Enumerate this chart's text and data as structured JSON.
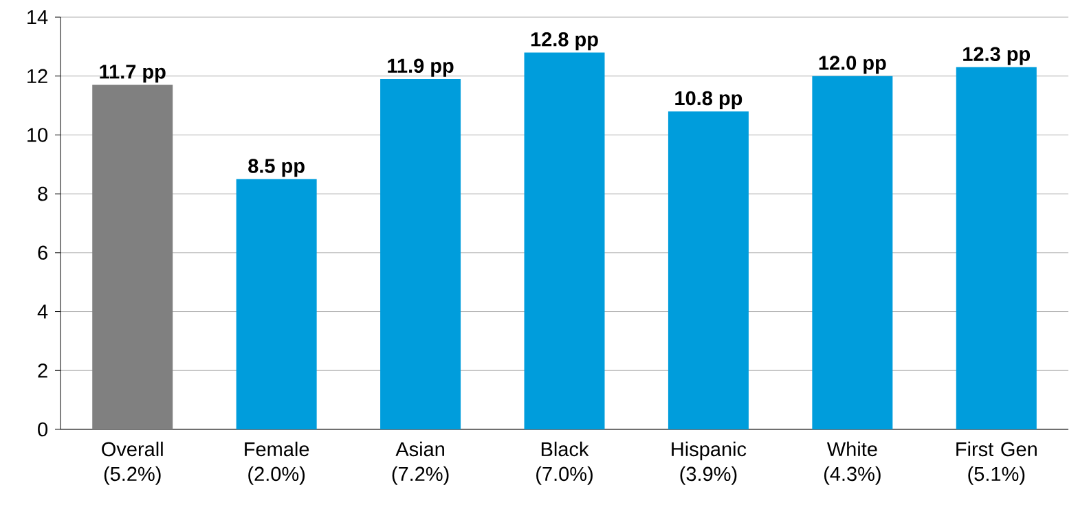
{
  "chart_data": {
    "type": "bar",
    "categories": [
      "Overall (5.2%)",
      "Female (2.0%)",
      "Asian (7.2%)",
      "Black (7.0%)",
      "Hispanic (3.9%)",
      "White (4.3%)",
      "First Gen (5.1%)"
    ],
    "values": [
      11.7,
      8.5,
      11.9,
      12.8,
      10.8,
      12.0,
      12.3
    ],
    "value_labels": [
      "11.7 pp",
      "8.5 pp",
      "11.9 pp",
      "12.8 pp",
      "10.8 pp",
      "12.0 pp",
      "12.3 pp"
    ],
    "colors": [
      "#808080",
      "#009ddc",
      "#009ddc",
      "#009ddc",
      "#009ddc",
      "#009ddc",
      "#009ddc"
    ],
    "ylim": [
      0,
      14
    ],
    "yticks": [
      0,
      2,
      4,
      6,
      8,
      10,
      12,
      14
    ],
    "grid": "y"
  }
}
